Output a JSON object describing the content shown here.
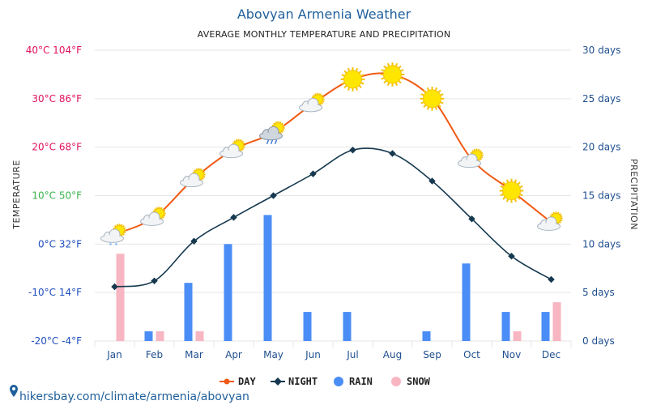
{
  "colors": {
    "day": "#f05a14",
    "night": "#16394f",
    "rain": "#4a8df6",
    "snow": "#f7b6c2",
    "grid": "#e6e6e6",
    "title": "#1f5f9a"
  },
  "source": "hikersbay.com/climate/armenia/abovyan",
  "chart_data": {
    "type": "line",
    "title": "Abovyan Armenia Weather",
    "subtitle": "AVERAGE MONTHLY TEMPERATURE AND PRECIPITATION",
    "ylabel": "TEMPERATURE",
    "y2label": "PRECIPITATION",
    "categories": [
      "Jan",
      "Feb",
      "Mar",
      "Apr",
      "May",
      "Jun",
      "Jul",
      "Aug",
      "Sep",
      "Oct",
      "Nov",
      "Dec"
    ],
    "ylim": [
      -20,
      40
    ],
    "y2lim": [
      0,
      30
    ],
    "y_ticks": [
      {
        "value": 40,
        "label": "40°C 104°F",
        "color": "#e0115f"
      },
      {
        "value": 30,
        "label": "30°C 86°F",
        "color": "#e0115f"
      },
      {
        "value": 20,
        "label": "20°C 68°F",
        "color": "#e0115f"
      },
      {
        "value": 10,
        "label": "10°C 50°F",
        "color": "#3cb44b"
      },
      {
        "value": 0,
        "label": "0°C 32°F",
        "color": "#1f4fbf"
      },
      {
        "value": -10,
        "label": "-10°C 14°F",
        "color": "#1f4fbf"
      },
      {
        "value": -20,
        "label": "-20°C -4°F",
        "color": "#1f4fbf"
      }
    ],
    "y2_ticks": [
      {
        "value": 30,
        "label": "30 days"
      },
      {
        "value": 25,
        "label": "25 days"
      },
      {
        "value": 20,
        "label": "20 days"
      },
      {
        "value": 15,
        "label": "15 days"
      },
      {
        "value": 10,
        "label": "10 days"
      },
      {
        "value": 5,
        "label": "5 days"
      },
      {
        "value": 0,
        "label": "0 days"
      }
    ],
    "series": [
      {
        "name": "DAY",
        "kind": "line",
        "axis": "temperature",
        "values": [
          2,
          5.5,
          13.5,
          19.5,
          23,
          29,
          34,
          35,
          30,
          17.5,
          11,
          4.5
        ]
      },
      {
        "name": "NIGHT",
        "kind": "line",
        "axis": "temperature",
        "values": [
          -8.8,
          -7.6,
          0.6,
          5.5,
          10,
          14.5,
          19.4,
          18.7,
          13,
          5.2,
          -2.5,
          -7.3
        ]
      },
      {
        "name": "RAIN",
        "kind": "bar",
        "axis": "precipitation",
        "values": [
          0,
          1,
          6,
          10,
          13,
          3,
          3,
          0,
          1,
          8,
          3,
          3
        ]
      },
      {
        "name": "SNOW",
        "kind": "bar",
        "axis": "precipitation",
        "values": [
          9,
          1,
          1,
          0,
          0,
          0,
          0,
          0,
          0,
          0,
          1,
          4
        ]
      }
    ],
    "weather_icons": [
      "cloud-sun-snow",
      "cloud-sun",
      "cloud-sun",
      "cloud-sun",
      "cloud-rain",
      "cloud-sun",
      "sun",
      "sun",
      "sun",
      "cloud-sun",
      "sun",
      "cloud-sun"
    ],
    "legend_position": "bottom",
    "grid": true
  }
}
